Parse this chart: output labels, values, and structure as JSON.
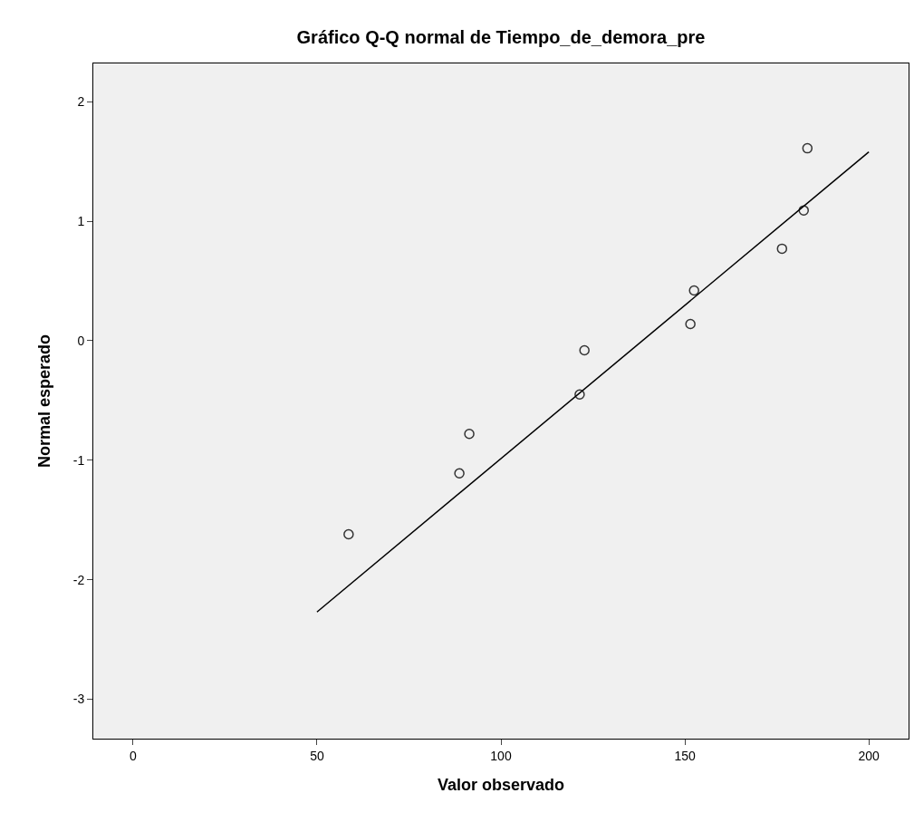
{
  "chart_data": {
    "type": "scatter",
    "title": "Gráfico Q-Q normal de Tiempo_de_demora_pre",
    "xlabel": "Valor observado",
    "ylabel": "Normal esperado",
    "xlim": [
      -10.8,
      210.8
    ],
    "xticks": [
      0,
      50,
      100,
      150,
      200
    ],
    "ylim": [
      -3.33,
      2.32
    ],
    "yticks": [
      -3,
      -2,
      -1,
      0,
      1,
      2
    ],
    "marker": "circle",
    "series": [
      {
        "color": "#333333",
        "x": [
          58.6,
          88.7,
          91.4,
          121.4,
          122.7,
          151.5,
          152.5,
          176.4,
          182.3,
          183.3
        ],
        "values": [
          -1.62,
          -1.11,
          -0.78,
          -0.45,
          -0.08,
          0.14,
          0.42,
          0.77,
          1.09,
          1.61
        ]
      },
      {
        "type": "line",
        "color": "#000000",
        "line_style": "solid",
        "marker": "none",
        "x": [
          50,
          200
        ],
        "values": [
          -2.27,
          1.58
        ]
      }
    ]
  }
}
